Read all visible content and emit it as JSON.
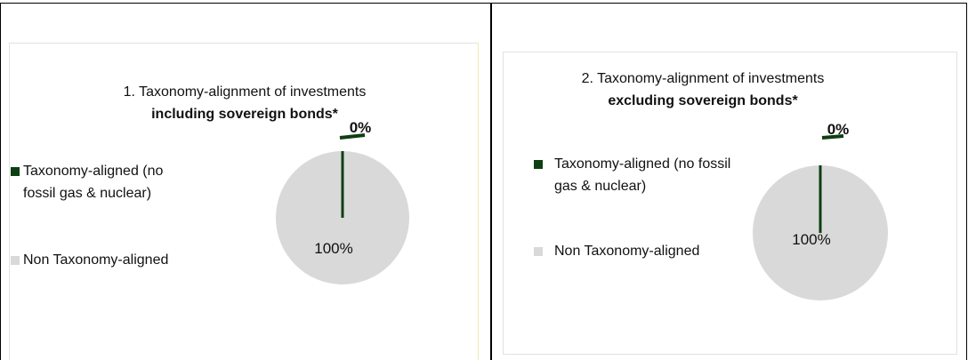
{
  "chart_data": [
    {
      "type": "pie",
      "title": "1. Taxonomy-alignment of investments",
      "subtitle": "including sovereign bonds*",
      "categories": [
        "Taxonomy-aligned (no fossil gas & nuclear)",
        "Non Taxonomy-aligned"
      ],
      "values": [
        0,
        100
      ],
      "value_labels": [
        "0%",
        "100%"
      ],
      "colors": [
        "#0e3f12",
        "#d9d9d9"
      ]
    },
    {
      "type": "pie",
      "title": "2. Taxonomy-alignment of investments",
      "subtitle": "excluding sovereign bonds*",
      "categories": [
        "Taxonomy-aligned (no fossil gas & nuclear)",
        "Non Taxonomy-aligned"
      ],
      "values": [
        0,
        100
      ],
      "value_labels": [
        "0%",
        "100%"
      ],
      "colors": [
        "#0e3f12",
        "#d9d9d9"
      ]
    }
  ]
}
